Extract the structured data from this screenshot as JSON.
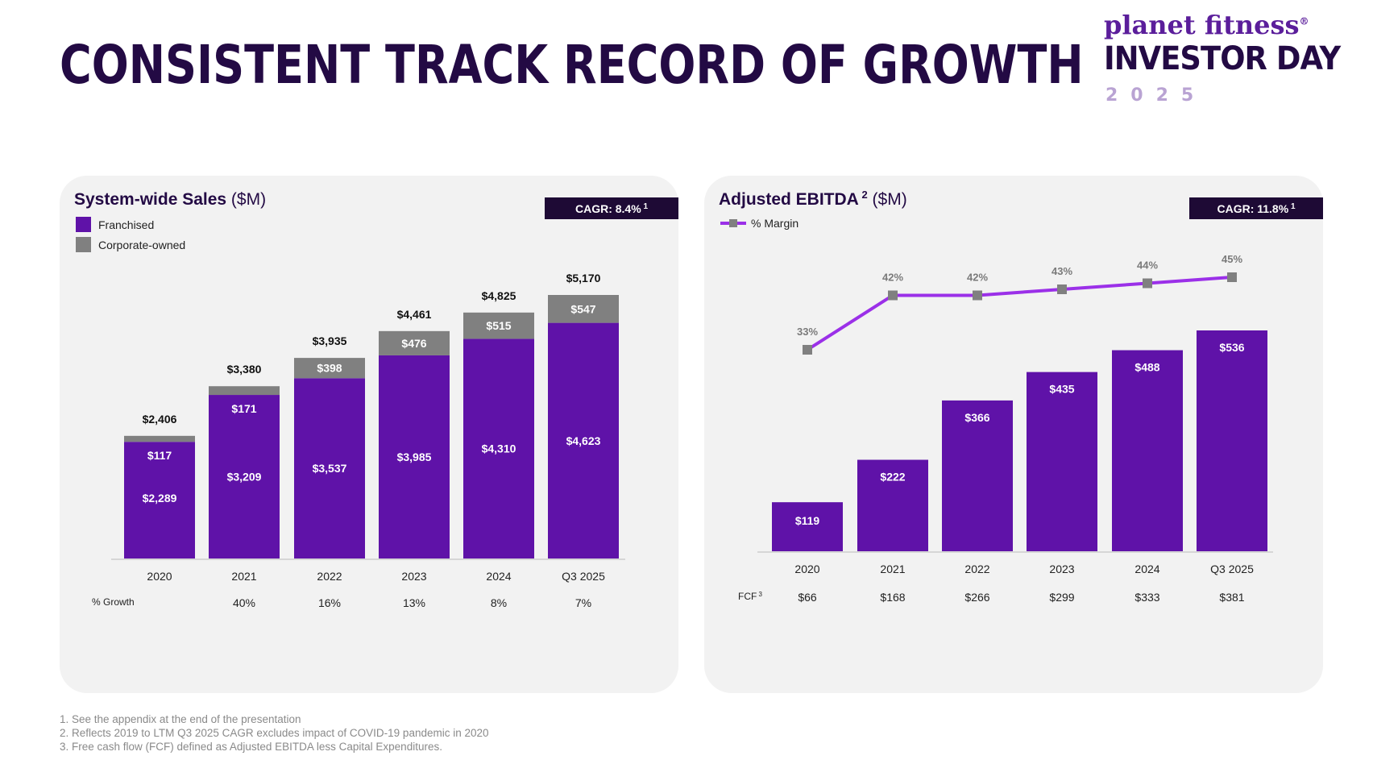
{
  "page": {
    "title": "CONSISTENT TRACK RECORD OF GROWTH",
    "brand": {
      "name": "planet fitness",
      "registered_mark": "®",
      "event": "INVESTOR DAY",
      "year": "2025"
    },
    "footnotes": [
      "1. See the appendix at the end of the presentation",
      "2. Reflects 2019 to LTM Q3 2025 CAGR excludes impact of COVID-19 pandemic in 2020",
      "3. Free cash flow (FCF) defined as Adjusted EBITDA less Capital Expenditures."
    ]
  },
  "colors": {
    "title": "#230a44",
    "franchised": "#5f12a8",
    "corporate": "#808080",
    "margin_line": "#9b30e8",
    "margin_marker": "#808080",
    "cagr_bg": "#1e0a35",
    "panel_bg": "#f2f2f2"
  },
  "chart_data": [
    {
      "type": "bar",
      "stacked": true,
      "title": "System-wide Sales",
      "unit": "($M)",
      "cagr_label": "CAGR: 8.4%",
      "cagr_footnote": "1",
      "legend": {
        "placement": "top-left",
        "entries": [
          "Franchised",
          "Corporate-owned"
        ]
      },
      "categories": [
        "2020",
        "2021",
        "2022",
        "2023",
        "2024",
        "Q3 2025"
      ],
      "series": [
        {
          "name": "Franchised",
          "values": [
            2289,
            3209,
            3537,
            3985,
            4310,
            4623
          ],
          "labels": [
            "$2,289",
            "$3,209",
            "$3,537",
            "$3,985",
            "$4,310",
            "$4,623"
          ]
        },
        {
          "name": "Corporate-owned",
          "values": [
            117,
            171,
            398,
            476,
            515,
            547
          ],
          "labels": [
            "$117",
            "$171",
            "$398",
            "$476",
            "$515",
            "$547"
          ]
        }
      ],
      "totals": [
        2406,
        3380,
        3935,
        4461,
        4825,
        5170
      ],
      "total_labels": [
        "$2,406",
        "$3,380",
        "$3,935",
        "$4,461",
        "$4,825",
        "$5,170"
      ],
      "growth_row": {
        "label": "% Growth",
        "values": [
          "",
          "40%",
          "16%",
          "13%",
          "8%",
          "7%"
        ]
      },
      "ylim": [
        0,
        5170
      ],
      "grid": false
    },
    {
      "type": "bar",
      "title": "Adjusted EBITDA",
      "title_footnote": "2",
      "unit": "($M)",
      "cagr_label": "CAGR: 11.8%",
      "cagr_footnote": "1",
      "legend": {
        "placement": "top-left",
        "entries": [
          "% Margin"
        ]
      },
      "categories": [
        "2020",
        "2021",
        "2022",
        "2023",
        "2024",
        "Q3 2025"
      ],
      "values": [
        119,
        222,
        366,
        435,
        488,
        536
      ],
      "value_labels": [
        "$119",
        "$222",
        "$366",
        "$435",
        "$488",
        "$536"
      ],
      "margin_line": {
        "name": "% Margin",
        "values": [
          33,
          42,
          42,
          43,
          44,
          45
        ],
        "labels": [
          "33%",
          "42%",
          "42%",
          "43%",
          "44%",
          "45%"
        ]
      },
      "fcf_row": {
        "label": "FCF",
        "footnote": "3",
        "values": [
          "$66",
          "$168",
          "$266",
          "$299",
          "$333",
          "$381"
        ]
      },
      "ylim": [
        0,
        536
      ],
      "grid": false
    }
  ]
}
